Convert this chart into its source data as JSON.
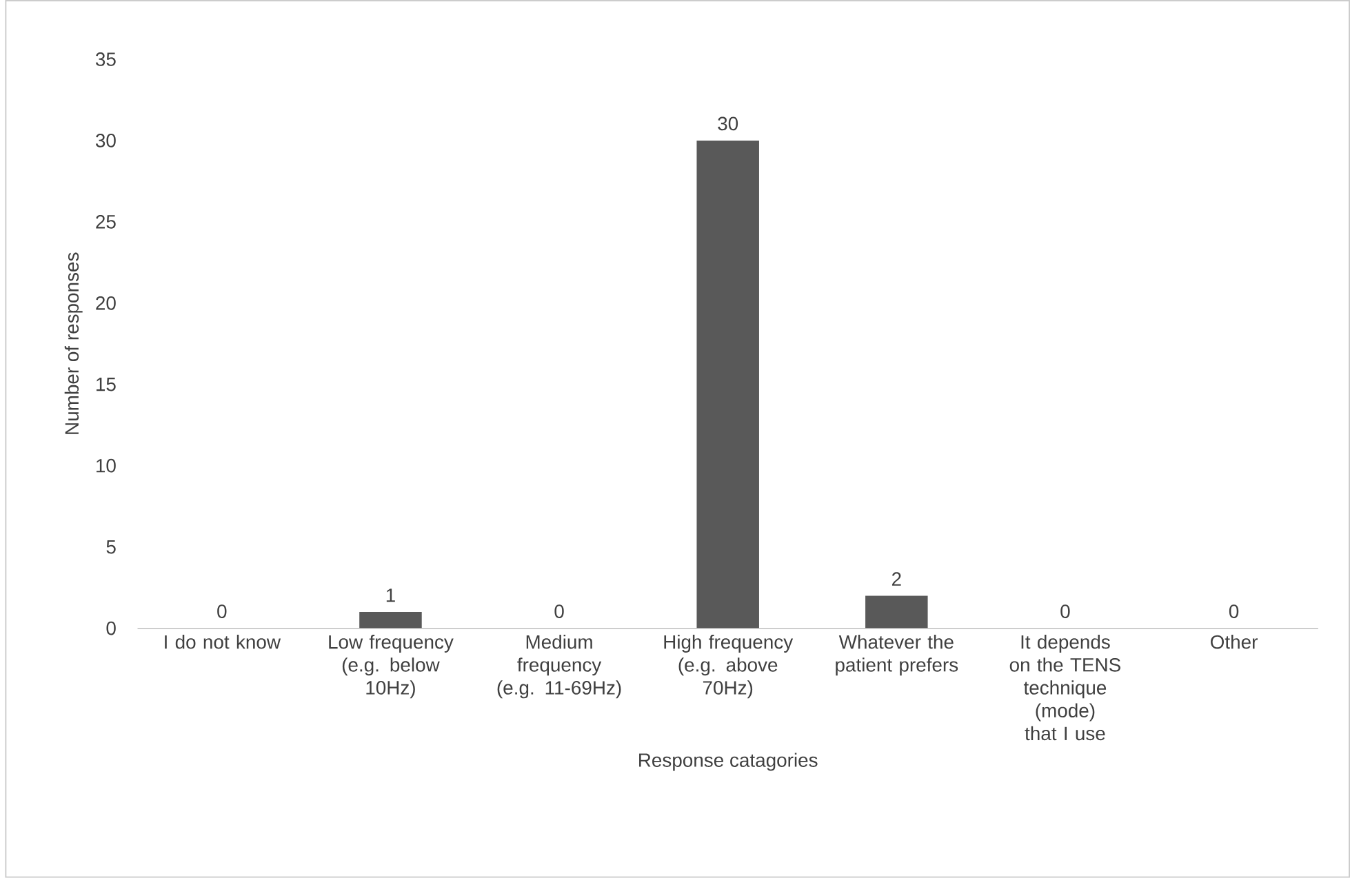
{
  "chart_data": {
    "type": "bar",
    "xlabel": "Response catagories",
    "ylabel": "Number of responses",
    "categories": [
      "I do not know",
      "Low frequency (e.g. below 10Hz)",
      "Medium frequency (e.g. 11-69Hz)",
      "High frequency (e.g. above 70Hz)",
      "Whatever the patient prefers",
      "It depends on the TENS technique (mode) that I use",
      "Other"
    ],
    "values": [
      0,
      1,
      0,
      30,
      2,
      0,
      0
    ],
    "color": "#595959",
    "ylim": [
      0,
      35
    ],
    "yticks": [
      0,
      5,
      10,
      15,
      20,
      25,
      30,
      35
    ],
    "data_labels": true
  }
}
